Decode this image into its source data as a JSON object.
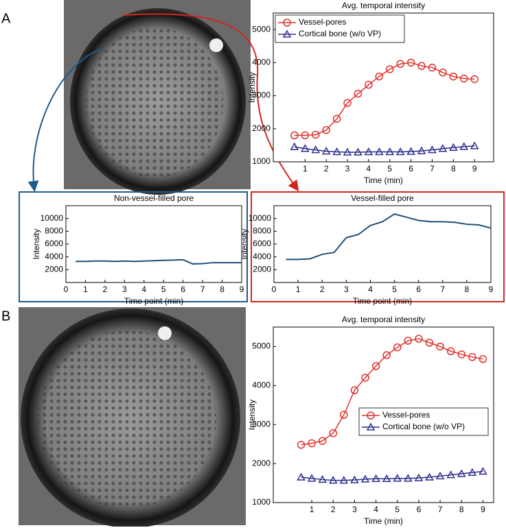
{
  "panel_labels": [
    "A",
    "B"
  ],
  "chart_data": [
    {
      "type": "line",
      "title": "Avg. temporal intensity",
      "xlabel": "Time (min)",
      "ylabel": "Intensity",
      "x": [
        0.5,
        1,
        1.5,
        2,
        2.5,
        3,
        3.5,
        4,
        4.5,
        5,
        5.5,
        6,
        6.5,
        7,
        7.5,
        8,
        8.5,
        9
      ],
      "series": [
        {
          "name": "Vessel-pores",
          "color": "#e0302a",
          "marker": "circle",
          "values": [
            1800,
            1800,
            1820,
            1960,
            2300,
            2780,
            3060,
            3330,
            3580,
            3800,
            3960,
            4000,
            3900,
            3850,
            3700,
            3580,
            3520,
            3500
          ]
        },
        {
          "name": "Cortical bone (w/o VP)",
          "color": "#2c2c8c",
          "marker": "triangle",
          "values": [
            1450,
            1400,
            1360,
            1320,
            1300,
            1290,
            1290,
            1300,
            1300,
            1300,
            1300,
            1310,
            1330,
            1360,
            1400,
            1430,
            1460,
            1480
          ]
        }
      ],
      "xlim": [
        -0.5,
        9.9
      ],
      "ylim": [
        1000,
        5500
      ],
      "xticks": [
        1,
        2,
        3,
        4,
        5,
        6,
        7,
        8,
        9
      ],
      "yticks": [
        1000,
        2000,
        3000,
        4000,
        5000
      ],
      "legend": "upper left"
    },
    {
      "type": "line",
      "title": "Non-vessel-filled pore",
      "xlabel": "Time point (min)",
      "ylabel": "Intensity",
      "x": [
        0.5,
        1,
        1.5,
        2,
        2.5,
        3,
        3.5,
        4,
        4.5,
        5,
        5.5,
        6,
        6.5,
        7,
        7.5,
        8,
        8.5,
        9
      ],
      "values": [
        3300,
        3300,
        3350,
        3350,
        3300,
        3350,
        3300,
        3350,
        3400,
        3450,
        3500,
        3550,
        2900,
        2950,
        3100,
        3100,
        3100,
        3100
      ],
      "color": "#1f4e79",
      "xlim": [
        0,
        9
      ],
      "ylim": [
        0,
        12000
      ],
      "xticks": [
        0,
        1,
        2,
        3,
        4,
        5,
        6,
        7,
        8,
        9
      ],
      "yticks": [
        2000,
        4000,
        6000,
        8000,
        10000
      ]
    },
    {
      "type": "line",
      "title": "Vessel-filled pore",
      "xlabel": "Time point (min)",
      "ylabel": "Intensity",
      "x": [
        0.5,
        1,
        1.5,
        2,
        2.5,
        3,
        3.5,
        4,
        4.5,
        5,
        5.5,
        6,
        6.5,
        7,
        7.5,
        8,
        8.5,
        9
      ],
      "values": [
        3600,
        3600,
        3700,
        4400,
        4700,
        7000,
        7500,
        8900,
        9500,
        10700,
        10200,
        9700,
        9500,
        9500,
        9400,
        9100,
        9000,
        8500
      ],
      "color": "#1f4e79",
      "xlim": [
        0,
        9
      ],
      "ylim": [
        0,
        12000
      ],
      "xticks": [
        0,
        1,
        2,
        3,
        4,
        5,
        6,
        7,
        8,
        9
      ],
      "yticks": [
        2000,
        4000,
        6000,
        8000,
        10000
      ]
    },
    {
      "type": "line",
      "title": "Avg. temporal intensity",
      "xlabel": "Time (min)",
      "ylabel": "Intensity",
      "x": [
        0.5,
        1,
        1.5,
        2,
        2.5,
        3,
        3.5,
        4,
        4.5,
        5,
        5.5,
        6,
        6.5,
        7,
        7.5,
        8,
        8.5,
        9
      ],
      "series": [
        {
          "name": "Vessel-pores",
          "color": "#e0302a",
          "marker": "circle",
          "values": [
            2480,
            2520,
            2580,
            2780,
            3250,
            3880,
            4200,
            4500,
            4780,
            4980,
            5150,
            5200,
            5100,
            5000,
            4880,
            4800,
            4730,
            4680
          ]
        },
        {
          "name": "Cortical bone (w/o VP)",
          "color": "#2c2c8c",
          "marker": "triangle",
          "values": [
            1650,
            1620,
            1590,
            1570,
            1570,
            1580,
            1600,
            1610,
            1610,
            1620,
            1620,
            1630,
            1650,
            1680,
            1710,
            1740,
            1770,
            1800
          ]
        }
      ],
      "xlim": [
        -0.8,
        9.5
      ],
      "ylim": [
        1000,
        5500
      ],
      "xticks": [
        1,
        2,
        3,
        4,
        5,
        6,
        7,
        8,
        9
      ],
      "yticks": [
        1000,
        2000,
        3000,
        4000,
        5000
      ],
      "legend": "center right"
    }
  ]
}
